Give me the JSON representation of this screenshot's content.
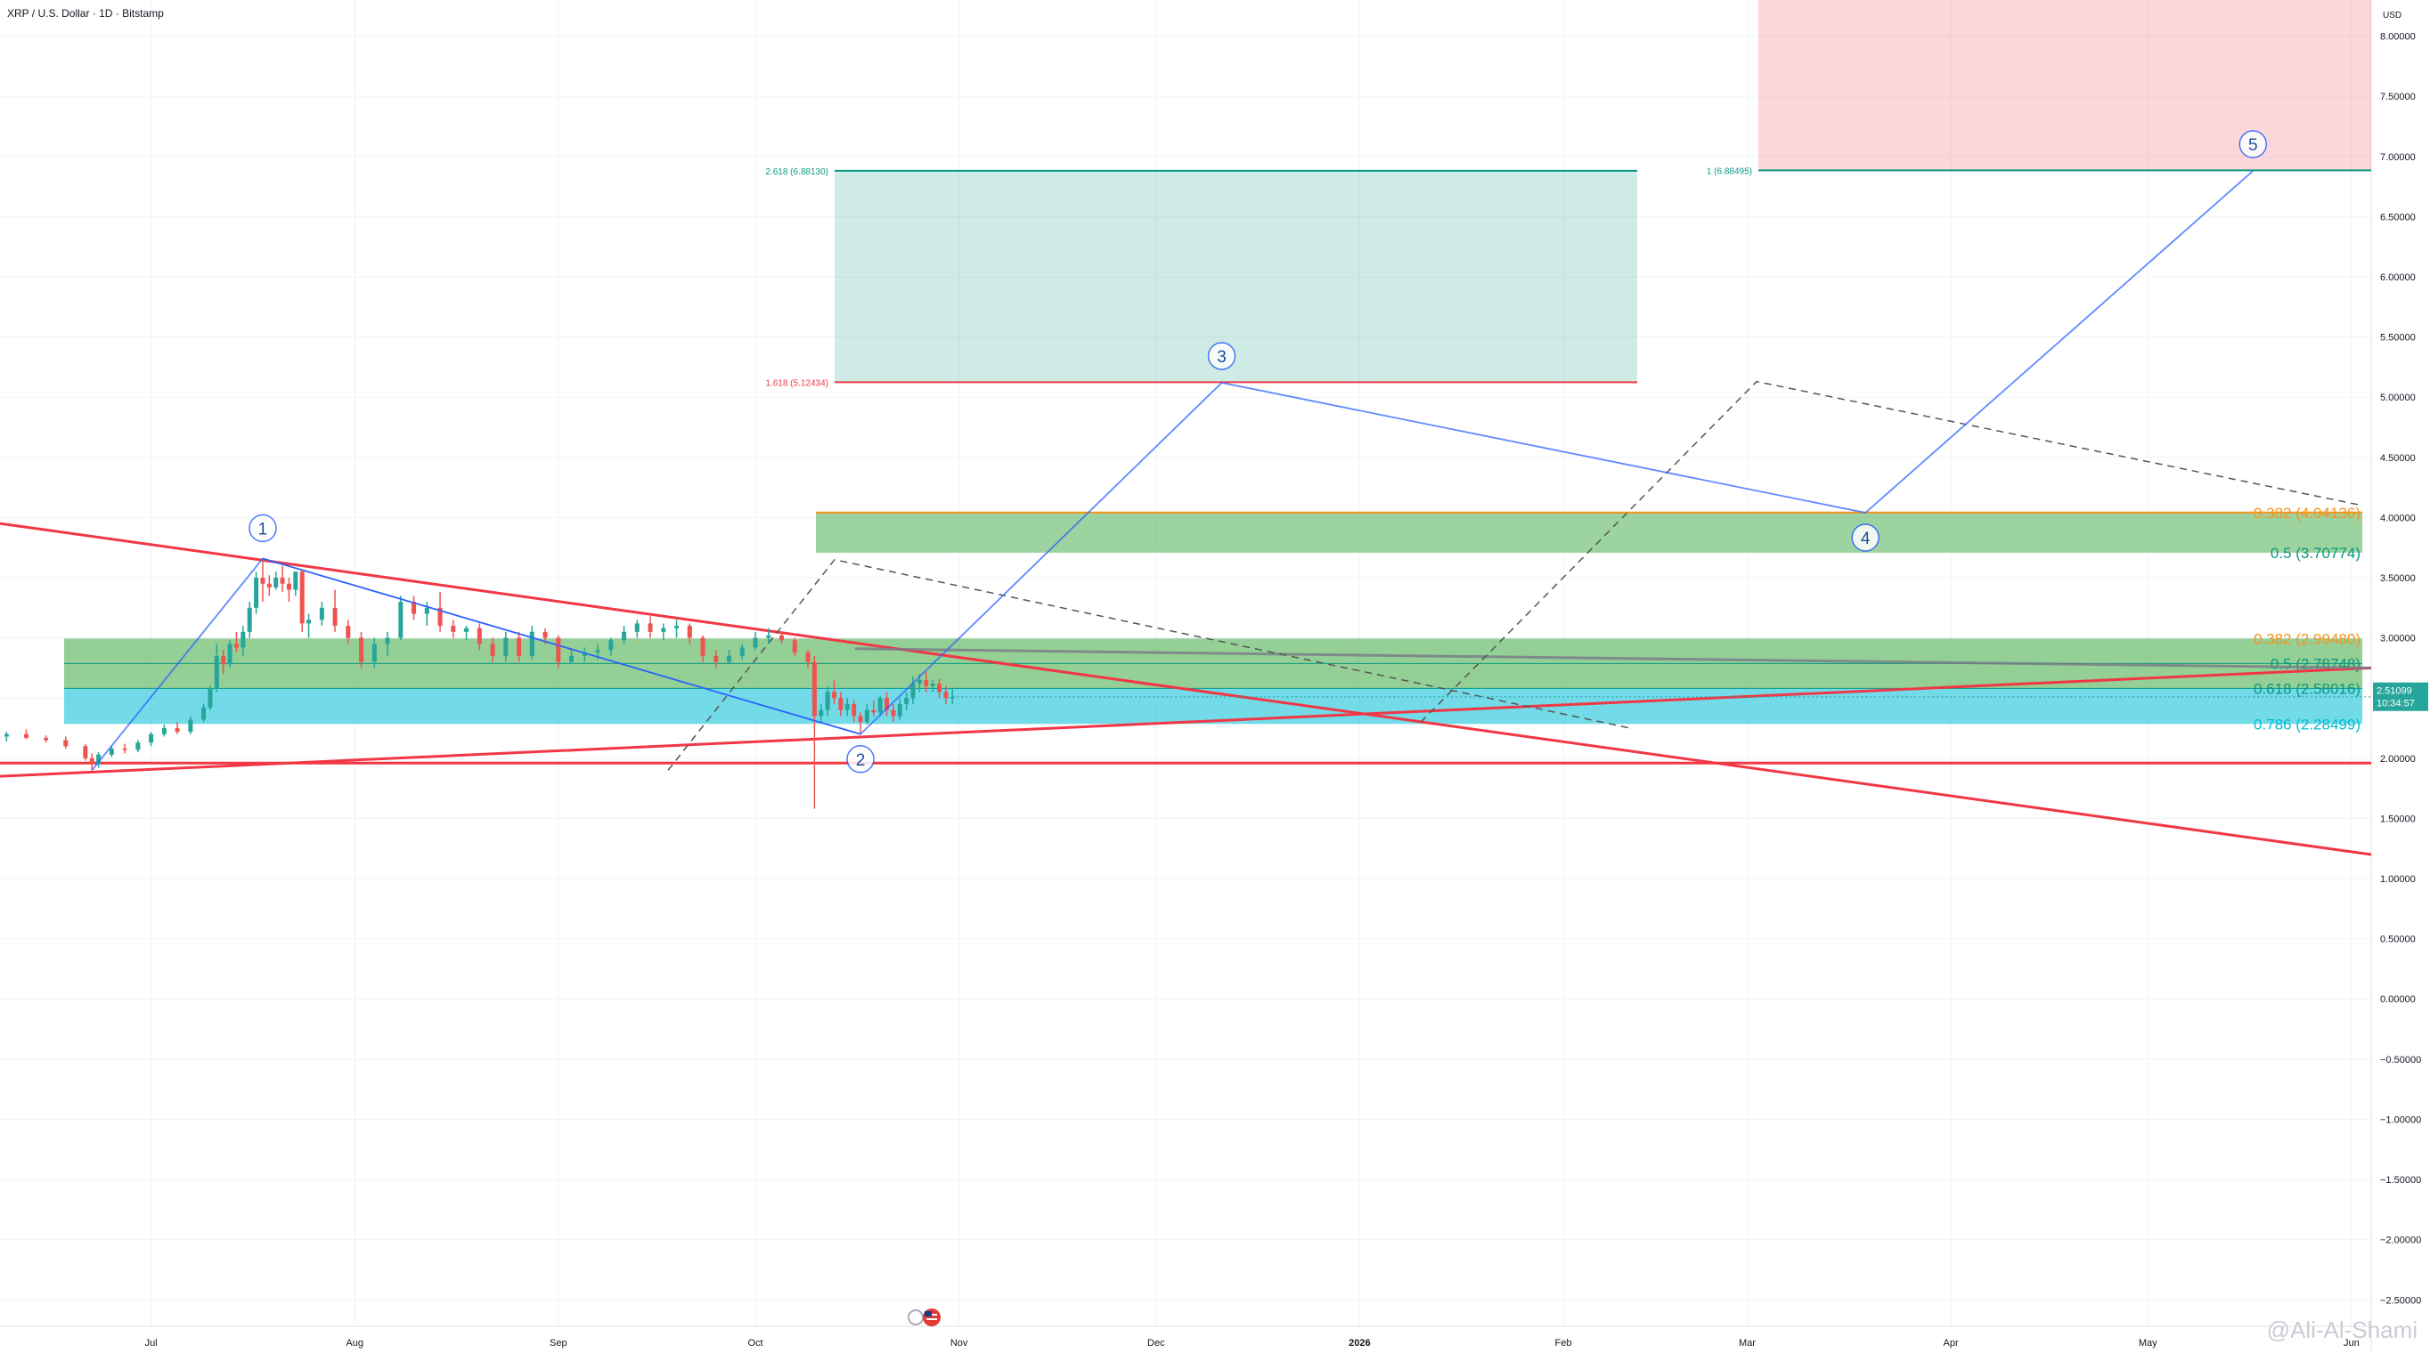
{
  "header": {
    "title": "XRP / U.S. Dollar · 1D · Bitstamp"
  },
  "watermark": "@Ali-Al-Shami",
  "colors": {
    "up": "#26a69a",
    "down": "#ef5350",
    "trendline": "#f23645",
    "wave": "#2962ff",
    "fib_green": "#089981",
    "orange": "#f7931a",
    "cyan": "#00bcd4"
  },
  "chart_data": {
    "type": "candlestick",
    "price_axis": {
      "unit": "USD",
      "ticks": [
        "8.00000",
        "7.50000",
        "7.00000",
        "6.50000",
        "6.00000",
        "5.50000",
        "5.00000",
        "4.50000",
        "4.00000",
        "3.50000",
        "3.00000",
        "2.50000",
        "2.00000",
        "1.50000",
        "1.00000",
        "0.50000",
        "0.00000",
        "−0.50000",
        "−1.00000",
        "−1.50000",
        "−2.00000",
        "−2.50000"
      ],
      "ylim": [
        -2.72,
        8.3
      ]
    },
    "time_axis": {
      "ticks": [
        "Jul",
        "Aug",
        "Sep",
        "Oct",
        "Nov",
        "Dec",
        "2026",
        "Feb",
        "Mar",
        "Apr",
        "May",
        "Jun"
      ],
      "xlim": [
        "2025-06-08",
        "2026-06-04"
      ]
    },
    "last_price": {
      "value": "2.51099",
      "countdown": "10:34:57"
    },
    "candles_approx": [
      {
        "d": "2025-06-09",
        "o": 2.18,
        "h": 2.22,
        "l": 2.14,
        "c": 2.2
      },
      {
        "d": "2025-06-12",
        "o": 2.2,
        "h": 2.24,
        "l": 2.16,
        "c": 2.17
      },
      {
        "d": "2025-06-15",
        "o": 2.17,
        "h": 2.19,
        "l": 2.13,
        "c": 2.15
      },
      {
        "d": "2025-06-18",
        "o": 2.15,
        "h": 2.18,
        "l": 2.08,
        "c": 2.1
      },
      {
        "d": "2025-06-21",
        "o": 2.1,
        "h": 2.12,
        "l": 1.98,
        "c": 2.0
      },
      {
        "d": "2025-06-22",
        "o": 2.0,
        "h": 2.04,
        "l": 1.9,
        "c": 1.95
      },
      {
        "d": "2025-06-23",
        "o": 1.95,
        "h": 2.05,
        "l": 1.92,
        "c": 2.03
      },
      {
        "d": "2025-06-25",
        "o": 2.03,
        "h": 2.1,
        "l": 2.01,
        "c": 2.08
      },
      {
        "d": "2025-06-27",
        "o": 2.08,
        "h": 2.12,
        "l": 2.04,
        "c": 2.07
      },
      {
        "d": "2025-06-29",
        "o": 2.07,
        "h": 2.15,
        "l": 2.05,
        "c": 2.13
      },
      {
        "d": "2025-07-01",
        "o": 2.13,
        "h": 2.22,
        "l": 2.1,
        "c": 2.2
      },
      {
        "d": "2025-07-03",
        "o": 2.2,
        "h": 2.28,
        "l": 2.18,
        "c": 2.25
      },
      {
        "d": "2025-07-05",
        "o": 2.25,
        "h": 2.3,
        "l": 2.2,
        "c": 2.22
      },
      {
        "d": "2025-07-07",
        "o": 2.22,
        "h": 2.35,
        "l": 2.2,
        "c": 2.32
      },
      {
        "d": "2025-07-09",
        "o": 2.32,
        "h": 2.45,
        "l": 2.3,
        "c": 2.42
      },
      {
        "d": "2025-07-10",
        "o": 2.42,
        "h": 2.6,
        "l": 2.4,
        "c": 2.58
      },
      {
        "d": "2025-07-11",
        "o": 2.58,
        "h": 2.95,
        "l": 2.55,
        "c": 2.85
      },
      {
        "d": "2025-07-12",
        "o": 2.85,
        "h": 2.9,
        "l": 2.7,
        "c": 2.78
      },
      {
        "d": "2025-07-13",
        "o": 2.78,
        "h": 2.98,
        "l": 2.75,
        "c": 2.95
      },
      {
        "d": "2025-07-14",
        "o": 2.95,
        "h": 3.05,
        "l": 2.88,
        "c": 2.92
      },
      {
        "d": "2025-07-15",
        "o": 2.92,
        "h": 3.1,
        "l": 2.85,
        "c": 3.05
      },
      {
        "d": "2025-07-16",
        "o": 3.05,
        "h": 3.3,
        "l": 3.0,
        "c": 3.25
      },
      {
        "d": "2025-07-17",
        "o": 3.25,
        "h": 3.55,
        "l": 3.2,
        "c": 3.5
      },
      {
        "d": "2025-07-18",
        "o": 3.5,
        "h": 3.66,
        "l": 3.3,
        "c": 3.45
      },
      {
        "d": "2025-07-19",
        "o": 3.45,
        "h": 3.52,
        "l": 3.35,
        "c": 3.42
      },
      {
        "d": "2025-07-20",
        "o": 3.42,
        "h": 3.55,
        "l": 3.4,
        "c": 3.5
      },
      {
        "d": "2025-07-21",
        "o": 3.5,
        "h": 3.6,
        "l": 3.38,
        "c": 3.45
      },
      {
        "d": "2025-07-22",
        "o": 3.45,
        "h": 3.5,
        "l": 3.3,
        "c": 3.4
      },
      {
        "d": "2025-07-23",
        "o": 3.4,
        "h": 3.55,
        "l": 3.35,
        "c": 3.55
      },
      {
        "d": "2025-07-24",
        "o": 3.55,
        "h": 3.56,
        "l": 3.05,
        "c": 3.12
      },
      {
        "d": "2025-07-25",
        "o": 3.12,
        "h": 3.2,
        "l": 3.0,
        "c": 3.15
      },
      {
        "d": "2025-07-27",
        "o": 3.15,
        "h": 3.3,
        "l": 3.1,
        "c": 3.25
      },
      {
        "d": "2025-07-29",
        "o": 3.25,
        "h": 3.4,
        "l": 3.05,
        "c": 3.1
      },
      {
        "d": "2025-07-31",
        "o": 3.1,
        "h": 3.15,
        "l": 2.95,
        "c": 3.0
      },
      {
        "d": "2025-08-02",
        "o": 3.0,
        "h": 3.05,
        "l": 2.75,
        "c": 2.8
      },
      {
        "d": "2025-08-04",
        "o": 2.8,
        "h": 3.0,
        "l": 2.75,
        "c": 2.95
      },
      {
        "d": "2025-08-06",
        "o": 2.95,
        "h": 3.05,
        "l": 2.85,
        "c": 3.0
      },
      {
        "d": "2025-08-08",
        "o": 3.0,
        "h": 3.35,
        "l": 2.98,
        "c": 3.3
      },
      {
        "d": "2025-08-10",
        "o": 3.3,
        "h": 3.35,
        "l": 3.15,
        "c": 3.2
      },
      {
        "d": "2025-08-12",
        "o": 3.2,
        "h": 3.3,
        "l": 3.1,
        "c": 3.25
      },
      {
        "d": "2025-08-14",
        "o": 3.25,
        "h": 3.38,
        "l": 3.05,
        "c": 3.1
      },
      {
        "d": "2025-08-16",
        "o": 3.1,
        "h": 3.15,
        "l": 3.0,
        "c": 3.05
      },
      {
        "d": "2025-08-18",
        "o": 3.05,
        "h": 3.1,
        "l": 2.98,
        "c": 3.08
      },
      {
        "d": "2025-08-20",
        "o": 3.08,
        "h": 3.12,
        "l": 2.9,
        "c": 2.95
      },
      {
        "d": "2025-08-22",
        "o": 2.95,
        "h": 3.0,
        "l": 2.8,
        "c": 2.85
      },
      {
        "d": "2025-08-24",
        "o": 2.85,
        "h": 3.05,
        "l": 2.8,
        "c": 3.0
      },
      {
        "d": "2025-08-26",
        "o": 3.0,
        "h": 3.05,
        "l": 2.8,
        "c": 2.85
      },
      {
        "d": "2025-08-28",
        "o": 2.85,
        "h": 3.1,
        "l": 2.82,
        "c": 3.05
      },
      {
        "d": "2025-08-30",
        "o": 3.05,
        "h": 3.08,
        "l": 2.95,
        "c": 3.0
      },
      {
        "d": "2025-09-01",
        "o": 3.0,
        "h": 3.02,
        "l": 2.75,
        "c": 2.8
      },
      {
        "d": "2025-09-03",
        "o": 2.8,
        "h": 2.9,
        "l": 2.78,
        "c": 2.85
      },
      {
        "d": "2025-09-05",
        "o": 2.85,
        "h": 2.92,
        "l": 2.8,
        "c": 2.88
      },
      {
        "d": "2025-09-07",
        "o": 2.88,
        "h": 2.95,
        "l": 2.82,
        "c": 2.9
      },
      {
        "d": "2025-09-09",
        "o": 2.9,
        "h": 3.0,
        "l": 2.85,
        "c": 2.98
      },
      {
        "d": "2025-09-11",
        "o": 2.98,
        "h": 3.1,
        "l": 2.95,
        "c": 3.05
      },
      {
        "d": "2025-09-13",
        "o": 3.05,
        "h": 3.15,
        "l": 3.0,
        "c": 3.12
      },
      {
        "d": "2025-09-15",
        "o": 3.12,
        "h": 3.18,
        "l": 3.0,
        "c": 3.05
      },
      {
        "d": "2025-09-17",
        "o": 3.05,
        "h": 3.12,
        "l": 2.98,
        "c": 3.08
      },
      {
        "d": "2025-09-19",
        "o": 3.08,
        "h": 3.15,
        "l": 3.0,
        "c": 3.1
      },
      {
        "d": "2025-09-21",
        "o": 3.1,
        "h": 3.12,
        "l": 2.95,
        "c": 3.0
      },
      {
        "d": "2025-09-23",
        "o": 3.0,
        "h": 3.02,
        "l": 2.8,
        "c": 2.85
      },
      {
        "d": "2025-09-25",
        "o": 2.85,
        "h": 2.9,
        "l": 2.75,
        "c": 2.8
      },
      {
        "d": "2025-09-27",
        "o": 2.8,
        "h": 2.9,
        "l": 2.78,
        "c": 2.85
      },
      {
        "d": "2025-09-29",
        "o": 2.85,
        "h": 2.95,
        "l": 2.82,
        "c": 2.92
      },
      {
        "d": "2025-10-01",
        "o": 2.92,
        "h": 3.05,
        "l": 2.9,
        "c": 3.0
      },
      {
        "d": "2025-10-03",
        "o": 3.0,
        "h": 3.08,
        "l": 2.95,
        "c": 3.02
      },
      {
        "d": "2025-10-05",
        "o": 3.02,
        "h": 3.05,
        "l": 2.95,
        "c": 2.98
      },
      {
        "d": "2025-10-07",
        "o": 2.98,
        "h": 3.0,
        "l": 2.85,
        "c": 2.88
      },
      {
        "d": "2025-10-09",
        "o": 2.88,
        "h": 2.9,
        "l": 2.75,
        "c": 2.8
      },
      {
        "d": "2025-10-10",
        "o": 2.8,
        "h": 2.85,
        "l": 1.58,
        "c": 2.35
      },
      {
        "d": "2025-10-11",
        "o": 2.35,
        "h": 2.45,
        "l": 2.3,
        "c": 2.4
      },
      {
        "d": "2025-10-12",
        "o": 2.4,
        "h": 2.6,
        "l": 2.35,
        "c": 2.55
      },
      {
        "d": "2025-10-13",
        "o": 2.55,
        "h": 2.65,
        "l": 2.45,
        "c": 2.5
      },
      {
        "d": "2025-10-14",
        "o": 2.5,
        "h": 2.55,
        "l": 2.35,
        "c": 2.4
      },
      {
        "d": "2025-10-15",
        "o": 2.4,
        "h": 2.5,
        "l": 2.35,
        "c": 2.45
      },
      {
        "d": "2025-10-16",
        "o": 2.45,
        "h": 2.48,
        "l": 2.3,
        "c": 2.35
      },
      {
        "d": "2025-10-17",
        "o": 2.35,
        "h": 2.38,
        "l": 2.2,
        "c": 2.3
      },
      {
        "d": "2025-10-18",
        "o": 2.3,
        "h": 2.45,
        "l": 2.28,
        "c": 2.4
      },
      {
        "d": "2025-10-19",
        "o": 2.4,
        "h": 2.48,
        "l": 2.35,
        "c": 2.38
      },
      {
        "d": "2025-10-20",
        "o": 2.38,
        "h": 2.52,
        "l": 2.35,
        "c": 2.5
      },
      {
        "d": "2025-10-21",
        "o": 2.5,
        "h": 2.55,
        "l": 2.35,
        "c": 2.4
      },
      {
        "d": "2025-10-22",
        "o": 2.4,
        "h": 2.45,
        "l": 2.3,
        "c": 2.35
      },
      {
        "d": "2025-10-23",
        "o": 2.35,
        "h": 2.5,
        "l": 2.32,
        "c": 2.45
      },
      {
        "d": "2025-10-24",
        "o": 2.45,
        "h": 2.55,
        "l": 2.4,
        "c": 2.5
      },
      {
        "d": "2025-10-25",
        "o": 2.5,
        "h": 2.68,
        "l": 2.45,
        "c": 2.62
      },
      {
        "d": "2025-10-26",
        "o": 2.62,
        "h": 2.7,
        "l": 2.55,
        "c": 2.65
      },
      {
        "d": "2025-10-27",
        "o": 2.65,
        "h": 2.72,
        "l": 2.55,
        "c": 2.6
      },
      {
        "d": "2025-10-28",
        "o": 2.6,
        "h": 2.65,
        "l": 2.55,
        "c": 2.62
      },
      {
        "d": "2025-10-29",
        "o": 2.62,
        "h": 2.66,
        "l": 2.5,
        "c": 2.55
      },
      {
        "d": "2025-10-30",
        "o": 2.55,
        "h": 2.6,
        "l": 2.45,
        "c": 2.5
      },
      {
        "d": "2025-10-31",
        "o": 2.5,
        "h": 2.58,
        "l": 2.45,
        "c": 2.51
      }
    ],
    "fib_top": [
      {
        "label": "2.618 (6.88130)",
        "value": 6.8813,
        "color": "#089981"
      },
      {
        "label": "1.618 (5.12434)",
        "value": 5.12434,
        "color": "#f23645"
      }
    ],
    "fib_right": [
      {
        "label": "1 (6.88495)",
        "value": 6.88495,
        "color": "#089981"
      }
    ],
    "fib_mid": [
      {
        "label": "0.382 (4.04136)",
        "value": 4.04136,
        "color": "#f7931a"
      },
      {
        "label": "0.5 (3.70774)",
        "value": 3.70774,
        "color": "#089981"
      }
    ],
    "fib_low": [
      {
        "label": "0.382 (2.99480)",
        "value": 2.9948,
        "color": "#f7931a"
      },
      {
        "label": "0.5 (2.78748)",
        "value": 2.78748,
        "color": "#089981"
      },
      {
        "label": "0.618 (2.58016)",
        "value": 2.58016,
        "color": "#089981"
      },
      {
        "label": "0.786 (2.28499)",
        "value": 2.28499,
        "color": "#00bcd4"
      }
    ],
    "waves": [
      {
        "label": "1",
        "d": "2025-07-18",
        "y": 3.66
      },
      {
        "label": "2",
        "d": "2025-10-17",
        "y": 2.2
      },
      {
        "label": "3",
        "d": "2025-12-11",
        "y": 5.12
      },
      {
        "label": "4",
        "d": "2026-03-19",
        "y": 4.04
      },
      {
        "label": "5",
        "d": "2026-05-17",
        "y": 6.88
      }
    ],
    "wave_start": {
      "d": "2025-06-22",
      "y": 1.9
    }
  }
}
